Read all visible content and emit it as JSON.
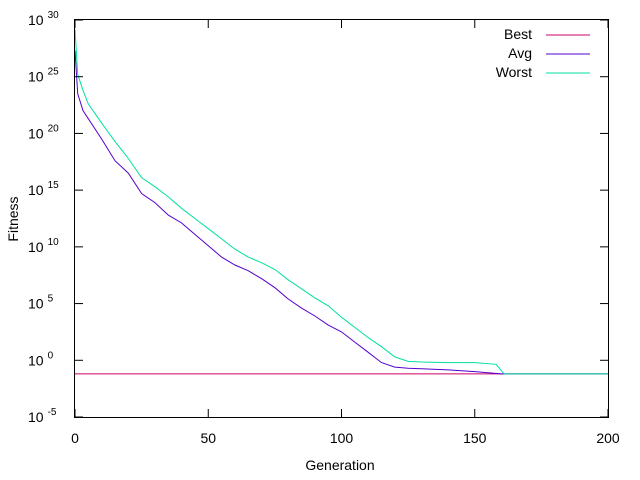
{
  "chart_data": {
    "type": "line",
    "title": "",
    "xlabel": "Generation",
    "ylabel": "Fitness",
    "xlim": [
      0,
      200
    ],
    "ylim_log10": [
      -5,
      30
    ],
    "yscale": "log",
    "grid": false,
    "legend_position": "top-right",
    "x_ticks": [
      0,
      50,
      100,
      150,
      200
    ],
    "y_ticks": [
      {
        "base": "10",
        "exp": "-5",
        "log10": -5
      },
      {
        "base": "10",
        "exp": "0",
        "log10": 0
      },
      {
        "base": "10",
        "exp": "5",
        "log10": 5
      },
      {
        "base": "10",
        "exp": "10",
        "log10": 10
      },
      {
        "base": "10",
        "exp": "15",
        "log10": 15
      },
      {
        "base": "10",
        "exp": "20",
        "log10": 20
      },
      {
        "base": "10",
        "exp": "25",
        "log10": 25
      },
      {
        "base": "10",
        "exp": "30",
        "log10": 30
      }
    ],
    "series": [
      {
        "name": "Best",
        "color": "#cc0066",
        "x": [
          0,
          200
        ],
        "log10_y": [
          -1.2,
          -1.2
        ]
      },
      {
        "name": "Avg",
        "color": "#5500cc",
        "x": [
          0,
          1,
          3,
          5,
          10,
          15,
          20,
          25,
          30,
          35,
          40,
          45,
          50,
          55,
          60,
          65,
          70,
          75,
          80,
          85,
          90,
          95,
          100,
          105,
          110,
          115,
          120,
          125,
          130,
          140,
          150,
          155,
          160,
          200
        ],
        "log10_y": [
          27.3,
          23.5,
          22.0,
          21.3,
          19.5,
          17.6,
          16.5,
          14.7,
          13.9,
          12.8,
          12.1,
          11.1,
          10.1,
          9.1,
          8.4,
          7.9,
          7.2,
          6.4,
          5.4,
          4.6,
          3.9,
          3.1,
          2.5,
          1.6,
          0.7,
          -0.2,
          -0.6,
          -0.7,
          -0.75,
          -0.85,
          -1.0,
          -1.1,
          -1.2,
          -1.2
        ]
      },
      {
        "name": "Worst",
        "color": "#00e0a0",
        "x": [
          0,
          1,
          3,
          5,
          10,
          15,
          20,
          25,
          30,
          35,
          40,
          45,
          50,
          55,
          60,
          65,
          70,
          75,
          80,
          85,
          90,
          95,
          100,
          105,
          110,
          115,
          120,
          125,
          130,
          140,
          150,
          158,
          161,
          200
        ],
        "log10_y": [
          29.2,
          25.2,
          23.8,
          22.6,
          20.9,
          19.3,
          17.8,
          16.1,
          15.3,
          14.4,
          13.4,
          12.5,
          11.6,
          10.7,
          9.8,
          9.1,
          8.6,
          8.0,
          7.1,
          6.3,
          5.5,
          4.8,
          3.8,
          2.9,
          2.0,
          1.2,
          0.3,
          -0.1,
          -0.15,
          -0.2,
          -0.2,
          -0.35,
          -1.2,
          -1.2
        ]
      }
    ]
  }
}
